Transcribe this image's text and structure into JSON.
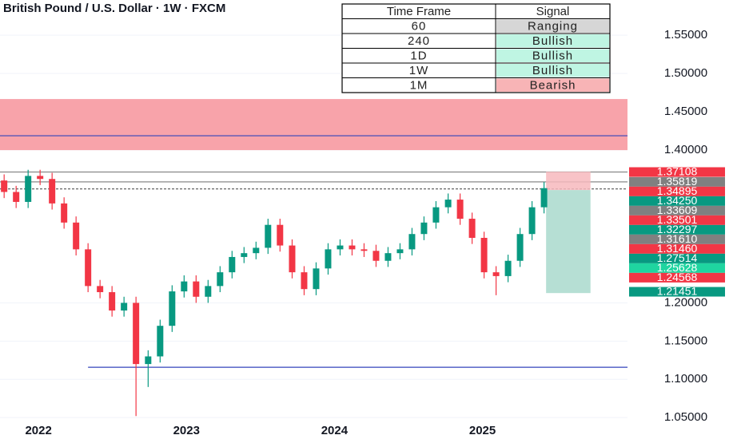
{
  "chart_data": {
    "type": "candlestick",
    "title": "British Pound / U.S. Dollar · 1W · FXCM",
    "x": [
      2021.768,
      2021.849,
      2021.93,
      2022.011,
      2022.092,
      2022.173,
      2022.254,
      2022.335,
      2022.416,
      2022.497,
      2022.578,
      2022.659,
      2022.741,
      2022.822,
      2022.903,
      2022.984,
      2023.065,
      2023.146,
      2023.227,
      2023.308,
      2023.389,
      2023.47,
      2023.551,
      2023.632,
      2023.714,
      2023.795,
      2023.876,
      2023.957,
      2024.038,
      2024.119,
      2024.2,
      2024.281,
      2024.362,
      2024.443,
      2024.524,
      2024.605,
      2024.686,
      2024.768,
      2024.849,
      2024.93,
      2025.011,
      2025.092,
      2025.173,
      2025.254,
      2025.335,
      2025.416
    ],
    "open": [
      1.36,
      1.345,
      1.332,
      1.366,
      1.362,
      1.33,
      1.305,
      1.27,
      1.222,
      1.214,
      1.19,
      1.2,
      1.12,
      1.13,
      1.17,
      1.215,
      1.228,
      1.208,
      1.222,
      1.24,
      1.26,
      1.265,
      1.272,
      1.302,
      1.275,
      1.24,
      1.218,
      1.245,
      1.27,
      1.275,
      1.27,
      1.268,
      1.255,
      1.265,
      1.27,
      1.29,
      1.305,
      1.325,
      1.335,
      1.31,
      1.285,
      1.24,
      1.235,
      1.255,
      1.29,
      1.325
    ],
    "high": [
      1.368,
      1.353,
      1.374,
      1.374,
      1.37,
      1.338,
      1.313,
      1.278,
      1.23,
      1.222,
      1.208,
      1.208,
      1.138,
      1.178,
      1.223,
      1.236,
      1.236,
      1.23,
      1.248,
      1.268,
      1.273,
      1.28,
      1.31,
      1.31,
      1.283,
      1.248,
      1.253,
      1.278,
      1.283,
      1.283,
      1.278,
      1.276,
      1.273,
      1.278,
      1.298,
      1.313,
      1.333,
      1.343,
      1.343,
      1.318,
      1.293,
      1.248,
      1.263,
      1.298,
      1.333,
      1.358
    ],
    "low": [
      1.337,
      1.324,
      1.324,
      1.354,
      1.322,
      1.297,
      1.262,
      1.214,
      1.206,
      1.182,
      1.182,
      1.052,
      1.09,
      1.122,
      1.162,
      1.207,
      1.2,
      1.2,
      1.214,
      1.232,
      1.252,
      1.257,
      1.264,
      1.267,
      1.232,
      1.21,
      1.21,
      1.237,
      1.262,
      1.262,
      1.26,
      1.247,
      1.247,
      1.257,
      1.262,
      1.282,
      1.297,
      1.317,
      1.302,
      1.277,
      1.232,
      1.21,
      1.227,
      1.247,
      1.282,
      1.317
    ],
    "close": [
      1.345,
      1.332,
      1.366,
      1.362,
      1.33,
      1.305,
      1.27,
      1.222,
      1.214,
      1.19,
      1.2,
      1.12,
      1.13,
      1.17,
      1.215,
      1.228,
      1.208,
      1.222,
      1.24,
      1.26,
      1.265,
      1.272,
      1.302,
      1.275,
      1.24,
      1.218,
      1.245,
      1.27,
      1.275,
      1.27,
      1.268,
      1.255,
      1.265,
      1.27,
      1.29,
      1.305,
      1.325,
      1.335,
      1.31,
      1.285,
      1.24,
      1.235,
      1.255,
      1.29,
      1.325,
      1.35
    ],
    "up_color": "#089981",
    "down_color": "#f23645",
    "xlim": [
      2021.74,
      2025.98
    ],
    "ylim": [
      1.022,
      1.596
    ],
    "xticks": [
      2022,
      2023,
      2024,
      2025
    ],
    "yticks": [
      {
        "value": 1.05,
        "label": "1.05000"
      },
      {
        "value": 1.1,
        "label": "1.10000"
      },
      {
        "value": 1.15,
        "label": "1.15000"
      },
      {
        "value": 1.2,
        "label": "1.20000"
      },
      {
        "value": 1.4,
        "label": "1.40000"
      },
      {
        "value": 1.45,
        "label": "1.45000"
      },
      {
        "value": 1.5,
        "label": "1.50000"
      },
      {
        "value": 1.55,
        "label": "1.55000"
      }
    ],
    "grid": true,
    "zones": [
      {
        "from": 1.3997,
        "to": 1.4665,
        "color": "#f8a3aa"
      }
    ],
    "levels": [
      {
        "value": 1.4185,
        "start": 2021.74,
        "color": "#3344bb"
      },
      {
        "value": 1.1158,
        "start": 2022.335,
        "color": "#3344bb"
      },
      {
        "value": 1.3711,
        "start": 2021.74,
        "color": "#888888"
      },
      {
        "value": 1.3582,
        "start": 2021.74,
        "color": "#888888"
      },
      {
        "value": 1.349,
        "start": 2021.74,
        "color": "#555555",
        "dashed": true
      }
    ],
    "position": {
      "start": 2025.43,
      "end": 2025.73,
      "entry": 1.3475,
      "stop": 1.3715,
      "target": 1.2128,
      "stop_color": "#f7b9bd",
      "target_color": "#a9d9cc"
    },
    "price_labels": [
      {
        "value": 1.37108,
        "label": "1.37108",
        "color": "#f23645"
      },
      {
        "value": 1.35819,
        "label": "1.35819",
        "color": "#808080"
      },
      {
        "value": 1.34895,
        "label": "1.34895",
        "color": "#f23645"
      },
      {
        "value": 1.3425,
        "label": "1.34250",
        "color": "#089981"
      },
      {
        "value": 1.33609,
        "label": "1.33609",
        "color": "#808080"
      },
      {
        "value": 1.33501,
        "label": "1.33501",
        "color": "#f23645"
      },
      {
        "value": 1.32297,
        "label": "1.32297",
        "color": "#089981"
      },
      {
        "value": 1.3161,
        "label": "1.31610",
        "color": "#808080"
      },
      {
        "value": 1.3146,
        "label": "1.31460",
        "color": "#f23645"
      },
      {
        "value": 1.27514,
        "label": "1.27514",
        "color": "#089981"
      },
      {
        "value": 1.25628,
        "label": "1.25628",
        "color": "#1fd5a0"
      },
      {
        "value": 1.24568,
        "label": "1.24568",
        "color": "#f23645"
      },
      {
        "value": 1.21451,
        "label": "1.21451",
        "color": "#089981"
      }
    ]
  },
  "signal_table": {
    "headers": [
      "Time Frame",
      "Signal"
    ],
    "rows": [
      [
        "60",
        "Ranging"
      ],
      [
        "240",
        "Bullish"
      ],
      [
        "1D",
        "Bullish"
      ],
      [
        "1W",
        "Bullish"
      ],
      [
        "1M",
        "Bearish"
      ]
    ],
    "row_colors": [
      "#d6d6d6",
      "#bff5e3",
      "#bff5e3",
      "#bff5e3",
      "#f8b4b6"
    ]
  }
}
